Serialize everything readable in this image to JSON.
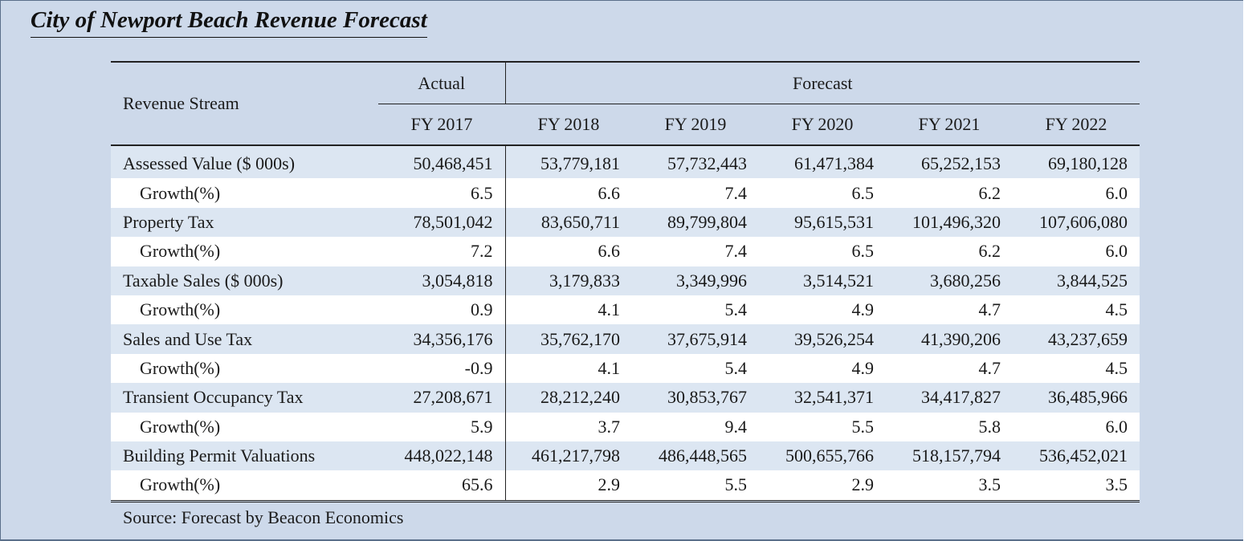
{
  "title": "City of Newport Beach Revenue Forecast",
  "table": {
    "header": {
      "stream": "Revenue Stream",
      "actual": "Actual",
      "forecast": "Forecast",
      "years": [
        "FY 2017",
        "FY 2018",
        "FY 2019",
        "FY 2020",
        "FY 2021",
        "FY 2022"
      ]
    },
    "rows": [
      [
        "Assessed Value ($ 000s)",
        "50,468,451",
        "53,779,181",
        "57,732,443",
        "61,471,384",
        "65,252,153",
        "69,180,128"
      ],
      [
        "Growth(%)",
        "6.5",
        "6.6",
        "7.4",
        "6.5",
        "6.2",
        "6.0"
      ],
      [
        "Property Tax",
        "78,501,042",
        "83,650,711",
        "89,799,804",
        "95,615,531",
        "101,496,320",
        "107,606,080"
      ],
      [
        "Growth(%)",
        "7.2",
        "6.6",
        "7.4",
        "6.5",
        "6.2",
        "6.0"
      ],
      [
        "Taxable Sales ($ 000s)",
        "3,054,818",
        "3,179,833",
        "3,349,996",
        "3,514,521",
        "3,680,256",
        "3,844,525"
      ],
      [
        "Growth(%)",
        "0.9",
        "4.1",
        "5.4",
        "4.9",
        "4.7",
        "4.5"
      ],
      [
        "Sales and Use Tax",
        "34,356,176",
        "35,762,170",
        "37,675,914",
        "39,526,254",
        "41,390,206",
        "43,237,659"
      ],
      [
        "Growth(%)",
        "-0.9",
        "4.1",
        "5.4",
        "4.9",
        "4.7",
        "4.5"
      ],
      [
        "Transient Occupancy Tax",
        "27,208,671",
        "28,212,240",
        "30,853,767",
        "32,541,371",
        "34,417,827",
        "36,485,966"
      ],
      [
        "Growth(%)",
        "5.9",
        "3.7",
        "9.4",
        "5.5",
        "5.8",
        "6.0"
      ],
      [
        "Building Permit Valuations",
        "448,022,148",
        "461,217,798",
        "486,448,565",
        "500,655,766",
        "518,157,794",
        "536,452,021"
      ],
      [
        "Growth(%)",
        "65.6",
        "2.9",
        "5.5",
        "2.9",
        "3.5",
        "3.5"
      ]
    ]
  },
  "source": "Source: Forecast by Beacon Economics"
}
